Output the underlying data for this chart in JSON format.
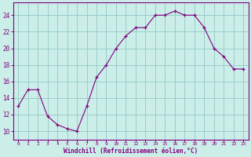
{
  "x": [
    0,
    1,
    2,
    3,
    4,
    5,
    6,
    7,
    8,
    9,
    10,
    11,
    12,
    13,
    14,
    15,
    16,
    17,
    18,
    19,
    20,
    21,
    22,
    23
  ],
  "y": [
    13,
    15,
    15,
    11.8,
    10.8,
    10.3,
    10,
    13,
    16.5,
    18,
    20,
    21.5,
    22.5,
    22.5,
    24,
    24,
    24.5,
    24,
    24,
    22.5,
    20,
    19,
    17.5,
    17.5
  ],
  "line_color": "#800080",
  "marker_color": "#800080",
  "bg_color": "#cceee8",
  "grid_color": "#99cccc",
  "axis_color": "#800080",
  "tick_color": "#800080",
  "label_color": "#800080",
  "xlabel": "Windchill (Refroidissement éolien,°C)",
  "ylim": [
    9.0,
    25.5
  ],
  "xlim": [
    -0.5,
    23.5
  ],
  "yticks": [
    10,
    12,
    14,
    16,
    18,
    20,
    22,
    24
  ],
  "xticks": [
    0,
    1,
    2,
    3,
    4,
    5,
    6,
    7,
    8,
    9,
    10,
    11,
    12,
    13,
    14,
    15,
    16,
    17,
    18,
    19,
    20,
    21,
    22,
    23
  ]
}
